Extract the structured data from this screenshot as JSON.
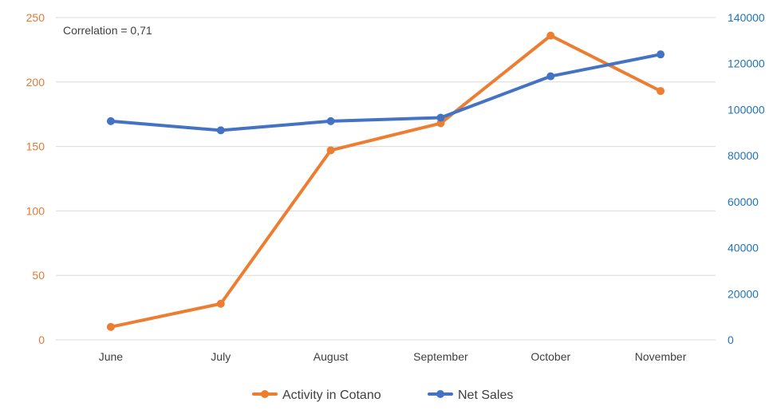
{
  "chart_data": {
    "type": "line",
    "categories": [
      "June",
      "July",
      "August",
      "September",
      "October",
      "November"
    ],
    "series": [
      {
        "name": "Activity in Cotano",
        "axis": "left",
        "color": "#ed7d31",
        "values": [
          10,
          28,
          147,
          168,
          236,
          193
        ]
      },
      {
        "name": "Net Sales",
        "axis": "right",
        "color": "#4472c4",
        "values": [
          95000,
          91000,
          95000,
          96500,
          114500,
          124000
        ]
      }
    ],
    "y_left": {
      "min": 0,
      "max": 250,
      "ticks": [
        "0",
        "50",
        "100",
        "150",
        "200",
        "250"
      ],
      "color": "#e07b39"
    },
    "y_right": {
      "min": 0,
      "max": 140000,
      "ticks": [
        "0",
        "20000",
        "40000",
        "60000",
        "80000",
        "100000",
        "120000",
        "140000"
      ],
      "color": "#1f73b7"
    },
    "annotation": "Correlation = 0,71",
    "grid": true,
    "legend_position": "bottom"
  }
}
